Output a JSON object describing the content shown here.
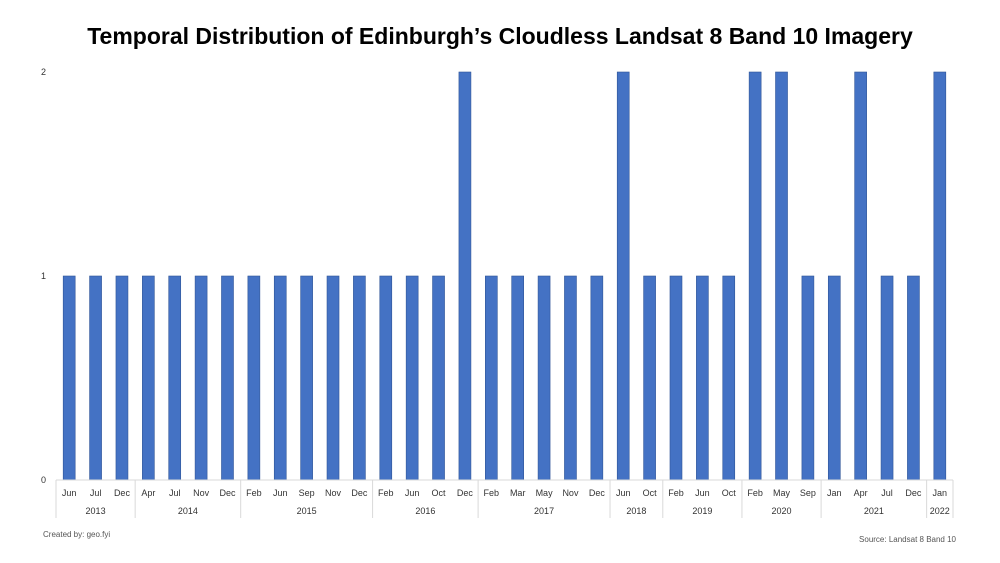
{
  "chart_data": {
    "type": "bar",
    "title": "Temporal Distribution of Edinburgh’s Cloudless Landsat 8 Band 10 Imagery",
    "xlabel": "",
    "ylabel": "",
    "ylim": [
      0,
      2
    ],
    "yticks": [
      "0",
      "1",
      "2"
    ],
    "grid": false,
    "color": "#4472C4",
    "groups": [
      {
        "year": "2013",
        "months": [
          "Jun",
          "Jul",
          "Dec"
        ],
        "values": [
          1,
          1,
          1
        ]
      },
      {
        "year": "2014",
        "months": [
          "Apr",
          "Jul",
          "Nov",
          "Dec"
        ],
        "values": [
          1,
          1,
          1,
          1
        ]
      },
      {
        "year": "2015",
        "months": [
          "Feb",
          "Jun",
          "Sep",
          "Nov",
          "Dec"
        ],
        "values": [
          1,
          1,
          1,
          1,
          1
        ]
      },
      {
        "year": "2016",
        "months": [
          "Feb",
          "Jun",
          "Oct",
          "Dec"
        ],
        "values": [
          1,
          1,
          1,
          2
        ]
      },
      {
        "year": "2017",
        "months": [
          "Feb",
          "Mar",
          "May",
          "Nov",
          "Dec"
        ],
        "values": [
          1,
          1,
          1,
          1,
          1
        ]
      },
      {
        "year": "2018",
        "months": [
          "Jun",
          "Oct"
        ],
        "values": [
          2,
          1
        ]
      },
      {
        "year": "2019",
        "months": [
          "Feb",
          "Jun",
          "Oct"
        ],
        "values": [
          1,
          1,
          1
        ]
      },
      {
        "year": "2020",
        "months": [
          "Feb",
          "May",
          "Sep"
        ],
        "values": [
          2,
          2,
          1
        ]
      },
      {
        "year": "2021",
        "months": [
          "Jan",
          "Apr",
          "Jul",
          "Dec"
        ],
        "values": [
          1,
          2,
          1,
          1
        ]
      },
      {
        "year": "2022",
        "months": [
          "Jan"
        ],
        "values": [
          2
        ]
      }
    ]
  },
  "footer": {
    "created_by": "Created by: geo.fyi",
    "source": "Source: Landsat 8 Band 10"
  }
}
